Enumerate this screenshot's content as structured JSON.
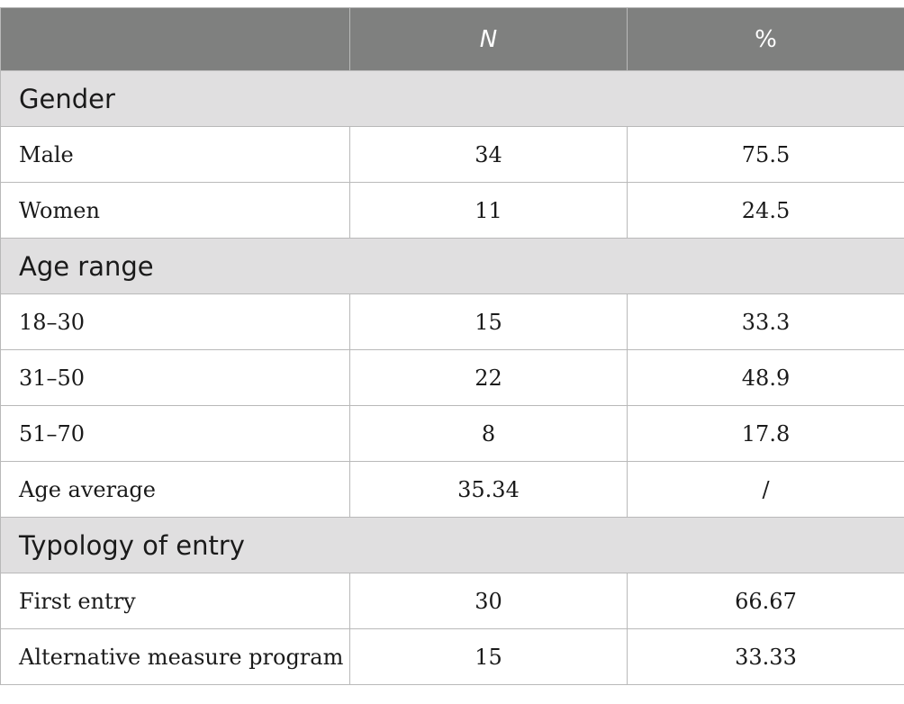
{
  "table": {
    "header": {
      "label": "",
      "n": "N",
      "pct": "%"
    },
    "sections": [
      {
        "title": "Gender",
        "rows": [
          {
            "label": "Male",
            "n": "34",
            "pct": "75.5"
          },
          {
            "label": "Women",
            "n": "11",
            "pct": "24.5"
          }
        ]
      },
      {
        "title": "Age range",
        "rows": [
          {
            "label": "18–30",
            "n": "15",
            "pct": "33.3"
          },
          {
            "label": "31–50",
            "n": "22",
            "pct": "48.9"
          },
          {
            "label": "51–70",
            "n": "8",
            "pct": "17.8"
          },
          {
            "label": "Age average",
            "n": "35.34",
            "pct": "/"
          }
        ]
      },
      {
        "title": "Typology of entry",
        "rows": [
          {
            "label": "First entry",
            "n": "30",
            "pct": "66.67"
          },
          {
            "label": "Alternative measure program",
            "n": "15",
            "pct": "33.33"
          }
        ]
      }
    ]
  }
}
